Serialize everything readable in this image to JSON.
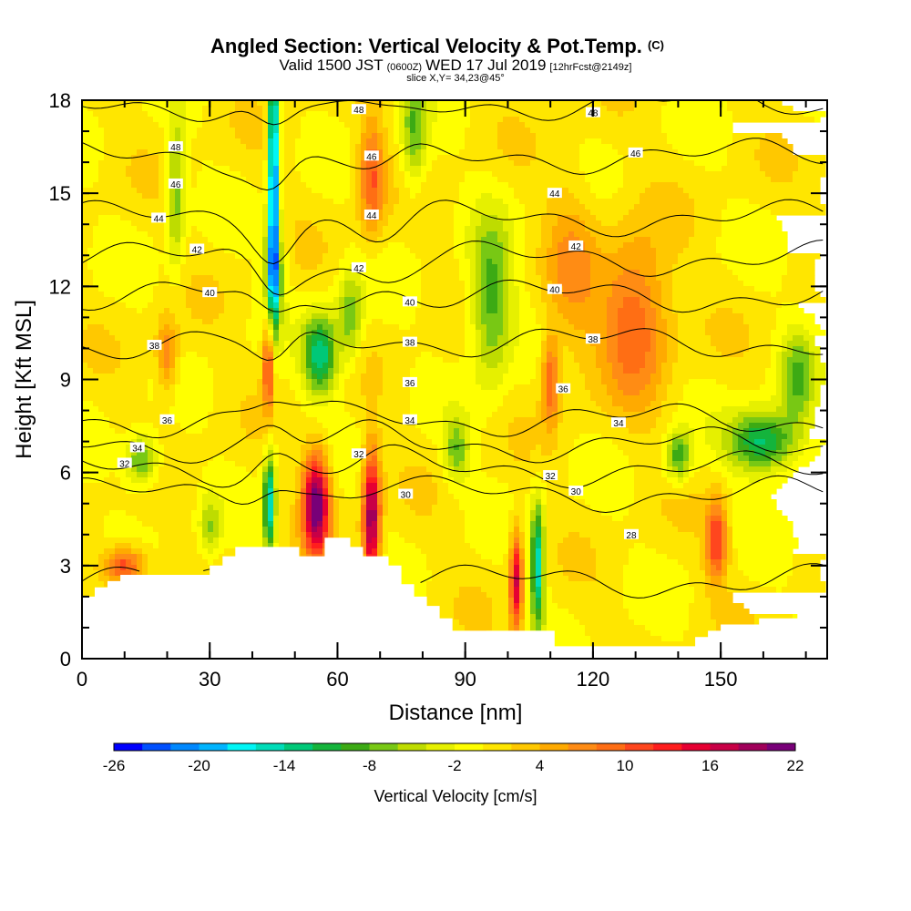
{
  "chart_data": {
    "type": "heatmap",
    "title": "Angled Section: Vertical Velocity & Pot.Temp.",
    "title_unit": "(C)",
    "subtitle": {
      "lead": "Valid 1500 JST",
      "zulu": "(0600Z)",
      "date": "WED 17 Jul 2019",
      "forecast": "[12hrFcst@2149z]"
    },
    "slice_label": "slice X,Y= 34,23@45°",
    "xlabel": "Distance [nm]",
    "ylabel": "Height [Kft MSL]",
    "xlim": [
      0,
      175
    ],
    "ylim": [
      0,
      18
    ],
    "x_ticks": [
      0,
      30,
      60,
      90,
      120,
      150
    ],
    "x_tick_labels": [
      "0",
      "30",
      "60",
      "90",
      "120",
      "150"
    ],
    "y_ticks": [
      0,
      3,
      6,
      9,
      12,
      15,
      18
    ],
    "y_tick_labels": [
      "0",
      "3",
      "6",
      "9",
      "12",
      "15",
      "18"
    ],
    "colorbar": {
      "label": "Vertical Velocity [cm/s]",
      "min": -26,
      "max": 22,
      "step": 2,
      "tick_labels": [
        "-26",
        "-20",
        "-14",
        "-8",
        "-2",
        "4",
        "10",
        "16",
        "22"
      ],
      "colors": [
        "#0000ff",
        "#0050ff",
        "#0088ff",
        "#00b4ff",
        "#00f5f5",
        "#00dcb8",
        "#00c878",
        "#14b43c",
        "#3caa14",
        "#78c814",
        "#bedc00",
        "#e6f000",
        "#ffff00",
        "#ffe600",
        "#ffc800",
        "#ffaa00",
        "#ff8c14",
        "#ff6e14",
        "#ff461e",
        "#ff1e1e",
        "#e60032",
        "#c80046",
        "#a0005a",
        "#780078"
      ]
    },
    "grid": false,
    "legend": "colorbar-bottom",
    "field_colors": {
      "background": "#f5f000",
      "terrain": "#ffffff"
    },
    "theta_isolines": [
      {
        "label": "28",
        "height": 2.5
      },
      {
        "label": "30",
        "height": 5.3
      },
      {
        "label": "32",
        "height": 6.1
      },
      {
        "label": "34",
        "height": 6.9
      },
      {
        "label": "36",
        "height": 7.7
      },
      {
        "label": "38",
        "height": 10.2
      },
      {
        "label": "40",
        "height": 11.7
      },
      {
        "label": "42",
        "height": 12.9
      },
      {
        "label": "44",
        "height": 14.2
      },
      {
        "label": "46",
        "height": 16.2
      },
      {
        "label": "48",
        "height": 17.9
      }
    ],
    "theta_labels": [
      {
        "text": "48",
        "x": 22,
        "y": 16.5
      },
      {
        "text": "46",
        "x": 22,
        "y": 15.3
      },
      {
        "text": "44",
        "x": 18,
        "y": 14.2
      },
      {
        "text": "42",
        "x": 27,
        "y": 13.2
      },
      {
        "text": "40",
        "x": 30,
        "y": 11.8
      },
      {
        "text": "38",
        "x": 17,
        "y": 10.1
      },
      {
        "text": "36",
        "x": 20,
        "y": 7.7
      },
      {
        "text": "34",
        "x": 13,
        "y": 6.8
      },
      {
        "text": "32",
        "x": 10,
        "y": 6.3
      },
      {
        "text": "48",
        "x": 65,
        "y": 17.7
      },
      {
        "text": "46",
        "x": 68,
        "y": 16.2
      },
      {
        "text": "44",
        "x": 68,
        "y": 14.3
      },
      {
        "text": "42",
        "x": 65,
        "y": 12.6
      },
      {
        "text": "40",
        "x": 77,
        "y": 11.5
      },
      {
        "text": "38",
        "x": 77,
        "y": 10.2
      },
      {
        "text": "36",
        "x": 77,
        "y": 8.9
      },
      {
        "text": "34",
        "x": 77,
        "y": 7.7
      },
      {
        "text": "32",
        "x": 65,
        "y": 6.6
      },
      {
        "text": "30",
        "x": 76,
        "y": 5.3
      },
      {
        "text": "48",
        "x": 120,
        "y": 17.6
      },
      {
        "text": "46",
        "x": 130,
        "y": 16.3
      },
      {
        "text": "44",
        "x": 111,
        "y": 15.0
      },
      {
        "text": "42",
        "x": 116,
        "y": 13.3
      },
      {
        "text": "40",
        "x": 111,
        "y": 11.9
      },
      {
        "text": "38",
        "x": 120,
        "y": 10.3
      },
      {
        "text": "36",
        "x": 113,
        "y": 8.7
      },
      {
        "text": "34",
        "x": 126,
        "y": 7.6
      },
      {
        "text": "32",
        "x": 110,
        "y": 5.9
      },
      {
        "text": "30",
        "x": 116,
        "y": 5.4
      },
      {
        "text": "28",
        "x": 129,
        "y": 4.0
      }
    ],
    "velocity_features": [
      {
        "x": 45,
        "y": 15.5,
        "sx": 1.2,
        "sy": 5.0,
        "value": -24
      },
      {
        "x": 45,
        "y": 12.5,
        "sx": 2.5,
        "sy": 1.5,
        "value": -10
      },
      {
        "x": 44,
        "y": 9.5,
        "sx": 1.4,
        "sy": 1.5,
        "value": 14
      },
      {
        "x": 44,
        "y": 5.0,
        "sx": 1.4,
        "sy": 1.6,
        "value": -16
      },
      {
        "x": 55,
        "y": 5.0,
        "sx": 3.0,
        "sy": 1.6,
        "value": 22
      },
      {
        "x": 68,
        "y": 4.5,
        "sx": 2.0,
        "sy": 2.2,
        "value": 20
      },
      {
        "x": 56,
        "y": 9.8,
        "sx": 4.0,
        "sy": 1.3,
        "value": -14
      },
      {
        "x": 68,
        "y": 15.5,
        "sx": 3.0,
        "sy": 1.8,
        "value": 10
      },
      {
        "x": 63,
        "y": 11.0,
        "sx": 3.0,
        "sy": 1.5,
        "value": -8
      },
      {
        "x": 78,
        "y": 17.0,
        "sx": 3.0,
        "sy": 2.0,
        "value": -8
      },
      {
        "x": 96,
        "y": 11.5,
        "sx": 5.0,
        "sy": 2.5,
        "value": -10
      },
      {
        "x": 102,
        "y": 2.5,
        "sx": 1.5,
        "sy": 1.6,
        "value": 16
      },
      {
        "x": 107,
        "y": 3.0,
        "sx": 1.6,
        "sy": 2.0,
        "value": -16
      },
      {
        "x": 130,
        "y": 11.0,
        "sx": 8.0,
        "sy": 2.5,
        "value": 10
      },
      {
        "x": 110,
        "y": 9.0,
        "sx": 2.0,
        "sy": 1.5,
        "value": 10
      },
      {
        "x": 149,
        "y": 3.8,
        "sx": 2.5,
        "sy": 1.3,
        "value": 12
      },
      {
        "x": 160,
        "y": 7.0,
        "sx": 8.0,
        "sy": 1.0,
        "value": -14
      },
      {
        "x": 14,
        "y": 6.4,
        "sx": 4.0,
        "sy": 0.8,
        "value": -10
      },
      {
        "x": 10,
        "y": 3.0,
        "sx": 5.0,
        "sy": 0.6,
        "value": 12
      },
      {
        "x": 22,
        "y": 15.0,
        "sx": 2.0,
        "sy": 2.5,
        "value": -8
      },
      {
        "x": 88,
        "y": 6.7,
        "sx": 3.0,
        "sy": 1.0,
        "value": -8
      },
      {
        "x": 168,
        "y": 9.0,
        "sx": 4.0,
        "sy": 1.5,
        "value": -8
      },
      {
        "x": 20,
        "y": 9.8,
        "sx": 2.5,
        "sy": 1.2,
        "value": 8
      },
      {
        "x": 30,
        "y": 4.2,
        "sx": 2.5,
        "sy": 1.0,
        "value": -6
      },
      {
        "x": 115,
        "y": 12.5,
        "sx": 6.0,
        "sy": 3.0,
        "value": 5
      },
      {
        "x": 140,
        "y": 6.5,
        "sx": 3.0,
        "sy": 0.8,
        "value": -10
      }
    ],
    "terrain_profile": {
      "x": [
        0,
        3,
        6,
        9,
        27,
        30,
        33,
        36,
        48,
        51,
        57,
        60,
        63,
        66,
        72,
        75,
        78,
        81,
        84,
        87,
        111,
        114,
        117,
        123,
        129,
        141,
        144,
        147,
        150,
        156,
        159,
        168,
        175
      ],
      "height": [
        2.0,
        2.3,
        2.5,
        2.7,
        2.7,
        3.0,
        3.3,
        3.6,
        3.6,
        3.3,
        3.9,
        3.9,
        3.6,
        3.3,
        3.0,
        2.4,
        2.0,
        1.7,
        1.3,
        0.9,
        0.4,
        0.4,
        0.4,
        0.4,
        0.4,
        0.4,
        0.7,
        0.9,
        1.1,
        1.1,
        1.3,
        1.6,
        1.6
      ]
    }
  }
}
